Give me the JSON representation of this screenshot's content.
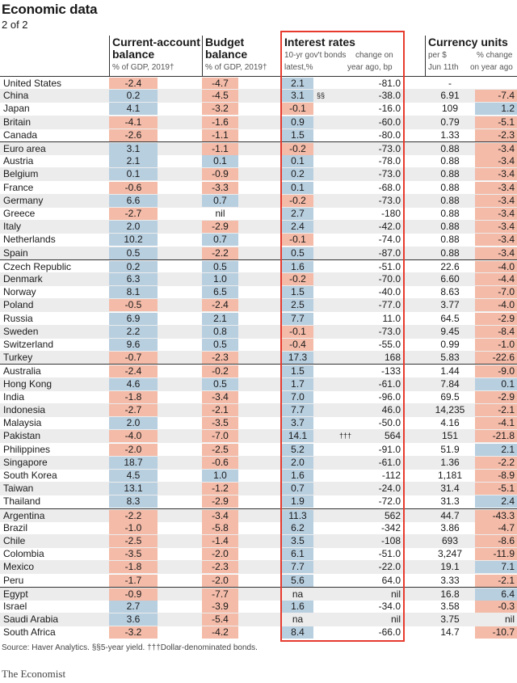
{
  "title": "Economic data",
  "subtitle": "2 of 2",
  "headers": {
    "ca": {
      "title1": "Current-account",
      "title2": "balance",
      "sub": "% of GDP, 2019†"
    },
    "bb": {
      "title1": "Budget",
      "title2": "balance",
      "sub": "% of GDP, 2019†"
    },
    "ir": {
      "title": "Interest rates",
      "sub1a": "10-yr gov't bonds",
      "sub1b": "latest,%",
      "sub2a": "change on",
      "sub2b": "year ago, bp"
    },
    "cu": {
      "title": "Currency units",
      "sub1a": "per $",
      "sub1b": "Jun 11th",
      "sub2a": "% change",
      "sub2b": "on year ago"
    }
  },
  "source": "Source: Haver Analytics. §§5-year yield. †††Dollar-denominated bonds.",
  "brand": "The Economist",
  "colors": {
    "negative": "#f4bba8",
    "positive": "#b8cfe0",
    "highlight": "#e63b2e"
  },
  "chart_data": {
    "type": "table",
    "columns": [
      "Current-account balance % of GDP, 2019",
      "Budget balance % of GDP, 2019",
      "10-yr gov't bonds latest,%",
      "change on year ago, bp",
      "Currency units per $ Jun 11th",
      "% change on year ago"
    ],
    "rows": [
      {
        "country": "United States",
        "ca": "-2.4",
        "bb": "-4.7",
        "ir": "2.1",
        "chg": "-81.0",
        "fx": "-",
        "fxchg": "",
        "note": ""
      },
      {
        "country": "China",
        "ca": "0.2",
        "bb": "-4.5",
        "ir": "3.1",
        "chg": "-38.0",
        "fx": "6.91",
        "fxchg": "-7.4",
        "note": "§§"
      },
      {
        "country": "Japan",
        "ca": "4.1",
        "bb": "-3.2",
        "ir": "-0.1",
        "chg": "-16.0",
        "fx": "109",
        "fxchg": "1.2",
        "note": ""
      },
      {
        "country": "Britain",
        "ca": "-4.1",
        "bb": "-1.6",
        "ir": "0.9",
        "chg": "-60.0",
        "fx": "0.79",
        "fxchg": "-5.1",
        "note": ""
      },
      {
        "country": "Canada",
        "ca": "-2.6",
        "bb": "-1.1",
        "ir": "1.5",
        "chg": "-80.0",
        "fx": "1.33",
        "fxchg": "-2.3",
        "note": ""
      },
      {
        "country": "Euro area",
        "ca": "3.1",
        "bb": "-1.1",
        "ir": "-0.2",
        "chg": "-73.0",
        "fx": "0.88",
        "fxchg": "-3.4",
        "note": ""
      },
      {
        "country": "Austria",
        "ca": "2.1",
        "bb": "0.1",
        "ir": "0.1",
        "chg": "-78.0",
        "fx": "0.88",
        "fxchg": "-3.4",
        "note": ""
      },
      {
        "country": "Belgium",
        "ca": "0.1",
        "bb": "-0.9",
        "ir": "0.2",
        "chg": "-73.0",
        "fx": "0.88",
        "fxchg": "-3.4",
        "note": ""
      },
      {
        "country": "France",
        "ca": "-0.6",
        "bb": "-3.3",
        "ir": "0.1",
        "chg": "-68.0",
        "fx": "0.88",
        "fxchg": "-3.4",
        "note": ""
      },
      {
        "country": "Germany",
        "ca": "6.6",
        "bb": "0.7",
        "ir": "-0.2",
        "chg": "-73.0",
        "fx": "0.88",
        "fxchg": "-3.4",
        "note": ""
      },
      {
        "country": "Greece",
        "ca": "-2.7",
        "bb": "nil",
        "ir": "2.7",
        "chg": "-180",
        "fx": "0.88",
        "fxchg": "-3.4",
        "note": ""
      },
      {
        "country": "Italy",
        "ca": "2.0",
        "bb": "-2.9",
        "ir": "2.4",
        "chg": "-42.0",
        "fx": "0.88",
        "fxchg": "-3.4",
        "note": ""
      },
      {
        "country": "Netherlands",
        "ca": "10.2",
        "bb": "0.7",
        "ir": "-0.1",
        "chg": "-74.0",
        "fx": "0.88",
        "fxchg": "-3.4",
        "note": ""
      },
      {
        "country": "Spain",
        "ca": "0.5",
        "bb": "-2.2",
        "ir": "0.5",
        "chg": "-87.0",
        "fx": "0.88",
        "fxchg": "-3.4",
        "note": ""
      },
      {
        "country": "Czech Republic",
        "ca": "0.2",
        "bb": "0.5",
        "ir": "1.6",
        "chg": "-51.0",
        "fx": "22.6",
        "fxchg": "-4.0",
        "note": ""
      },
      {
        "country": "Denmark",
        "ca": "6.3",
        "bb": "1.0",
        "ir": "-0.2",
        "chg": "-70.0",
        "fx": "6.60",
        "fxchg": "-4.4",
        "note": ""
      },
      {
        "country": "Norway",
        "ca": "8.1",
        "bb": "6.5",
        "ir": "1.5",
        "chg": "-40.0",
        "fx": "8.63",
        "fxchg": "-7.0",
        "note": ""
      },
      {
        "country": "Poland",
        "ca": "-0.5",
        "bb": "-2.4",
        "ir": "2.5",
        "chg": "-77.0",
        "fx": "3.77",
        "fxchg": "-4.0",
        "note": ""
      },
      {
        "country": "Russia",
        "ca": "6.9",
        "bb": "2.1",
        "ir": "7.7",
        "chg": "11.0",
        "fx": "64.5",
        "fxchg": "-2.9",
        "note": ""
      },
      {
        "country": "Sweden",
        "ca": "2.2",
        "bb": "0.8",
        "ir": "-0.1",
        "chg": "-73.0",
        "fx": "9.45",
        "fxchg": "-8.4",
        "note": ""
      },
      {
        "country": "Switzerland",
        "ca": "9.6",
        "bb": "0.5",
        "ir": "-0.4",
        "chg": "-55.0",
        "fx": "0.99",
        "fxchg": "-1.0",
        "note": ""
      },
      {
        "country": "Turkey",
        "ca": "-0.7",
        "bb": "-2.3",
        "ir": "17.3",
        "chg": "168",
        "fx": "5.83",
        "fxchg": "-22.6",
        "note": ""
      },
      {
        "country": "Australia",
        "ca": "-2.4",
        "bb": "-0.2",
        "ir": "1.5",
        "chg": "-133",
        "fx": "1.44",
        "fxchg": "-9.0",
        "note": ""
      },
      {
        "country": "Hong Kong",
        "ca": "4.6",
        "bb": "0.5",
        "ir": "1.7",
        "chg": "-61.0",
        "fx": "7.84",
        "fxchg": "0.1",
        "note": ""
      },
      {
        "country": "India",
        "ca": "-1.8",
        "bb": "-3.4",
        "ir": "7.0",
        "chg": "-96.0",
        "fx": "69.5",
        "fxchg": "-2.9",
        "note": ""
      },
      {
        "country": "Indonesia",
        "ca": "-2.7",
        "bb": "-2.1",
        "ir": "7.7",
        "chg": "46.0",
        "fx": "14,235",
        "fxchg": "-2.1",
        "note": ""
      },
      {
        "country": "Malaysia",
        "ca": "2.0",
        "bb": "-3.5",
        "ir": "3.7",
        "chg": "-50.0",
        "fx": "4.16",
        "fxchg": "-4.1",
        "note": ""
      },
      {
        "country": "Pakistan",
        "ca": "-4.0",
        "bb": "-7.0",
        "ir": "14.1",
        "chg": "564",
        "fx": "151",
        "fxchg": "-21.8",
        "note": "†††"
      },
      {
        "country": "Philippines",
        "ca": "-2.0",
        "bb": "-2.5",
        "ir": "5.2",
        "chg": "-91.0",
        "fx": "51.9",
        "fxchg": "2.1",
        "note": ""
      },
      {
        "country": "Singapore",
        "ca": "18.7",
        "bb": "-0.6",
        "ir": "2.0",
        "chg": "-61.0",
        "fx": "1.36",
        "fxchg": "-2.2",
        "note": ""
      },
      {
        "country": "South Korea",
        "ca": "4.5",
        "bb": "1.0",
        "ir": "1.6",
        "chg": "-112",
        "fx": "1,181",
        "fxchg": "-8.9",
        "note": ""
      },
      {
        "country": "Taiwan",
        "ca": "13.1",
        "bb": "-1.2",
        "ir": "0.7",
        "chg": "-24.0",
        "fx": "31.4",
        "fxchg": "-5.1",
        "note": ""
      },
      {
        "country": "Thailand",
        "ca": "8.3",
        "bb": "-2.9",
        "ir": "1.9",
        "chg": "-72.0",
        "fx": "31.3",
        "fxchg": "2.4",
        "note": ""
      },
      {
        "country": "Argentina",
        "ca": "-2.2",
        "bb": "-3.4",
        "ir": "11.3",
        "chg": "562",
        "fx": "44.7",
        "fxchg": "-43.3",
        "note": ""
      },
      {
        "country": "Brazil",
        "ca": "-1.0",
        "bb": "-5.8",
        "ir": "6.2",
        "chg": "-342",
        "fx": "3.86",
        "fxchg": "-4.7",
        "note": ""
      },
      {
        "country": "Chile",
        "ca": "-2.5",
        "bb": "-1.4",
        "ir": "3.5",
        "chg": "-108",
        "fx": "693",
        "fxchg": "-8.6",
        "note": ""
      },
      {
        "country": "Colombia",
        "ca": "-3.5",
        "bb": "-2.0",
        "ir": "6.1",
        "chg": "-51.0",
        "fx": "3,247",
        "fxchg": "-11.9",
        "note": ""
      },
      {
        "country": "Mexico",
        "ca": "-1.8",
        "bb": "-2.3",
        "ir": "7.7",
        "chg": "-22.0",
        "fx": "19.1",
        "fxchg": "7.1",
        "note": ""
      },
      {
        "country": "Peru",
        "ca": "-1.7",
        "bb": "-2.0",
        "ir": "5.6",
        "chg": "64.0",
        "fx": "3.33",
        "fxchg": "-2.1",
        "note": ""
      },
      {
        "country": "Egypt",
        "ca": "-0.9",
        "bb": "-7.7",
        "ir": "na",
        "chg": "nil",
        "fx": "16.8",
        "fxchg": "6.4",
        "note": ""
      },
      {
        "country": "Israel",
        "ca": "2.7",
        "bb": "-3.9",
        "ir": "1.6",
        "chg": "-34.0",
        "fx": "3.58",
        "fxchg": "-0.3",
        "note": ""
      },
      {
        "country": "Saudi Arabia",
        "ca": "3.6",
        "bb": "-5.4",
        "ir": "na",
        "chg": "nil",
        "fx": "3.75",
        "fxchg": "nil",
        "note": ""
      },
      {
        "country": "South Africa",
        "ca": "-3.2",
        "bb": "-4.2",
        "ir": "8.4",
        "chg": "-66.0",
        "fx": "14.7",
        "fxchg": "-10.7",
        "note": ""
      }
    ]
  }
}
